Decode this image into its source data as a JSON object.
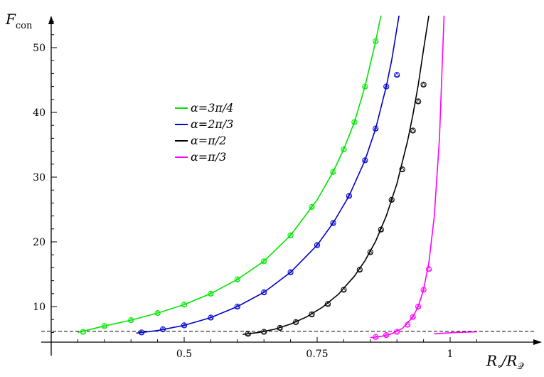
{
  "chart_data": {
    "type": "line",
    "title": "",
    "xlabel": "R∘/R𝒬",
    "xlabel_parts": {
      "main1": "R",
      "sub1": "∘",
      "slash": "/",
      "main2": "R",
      "sub2": "𝒬"
    },
    "ylabel": "F",
    "ylabel_parts": {
      "main": "F",
      "sub": "con"
    },
    "xlim": [
      0.23,
      1.06
    ],
    "ylim": [
      4.6,
      55
    ],
    "xticks": [
      {
        "value": 0.5,
        "label": "0.5"
      },
      {
        "value": 0.75,
        "label": "0.75"
      },
      {
        "value": 1,
        "label": "1"
      }
    ],
    "yticks": [
      {
        "value": 10,
        "label": "10"
      },
      {
        "value": 20,
        "label": "20"
      },
      {
        "value": 30,
        "label": "30"
      },
      {
        "value": 40,
        "label": "40"
      },
      {
        "value": 50,
        "label": "50"
      }
    ],
    "grid": false,
    "legend_position": "upper-left",
    "reference_line": {
      "y": 6.2,
      "style": "dashed"
    },
    "series": [
      {
        "name": "α=3π/4",
        "color": "#00e600",
        "curve": {
          "x": [
            0.3,
            0.35,
            0.4,
            0.45,
            0.5,
            0.55,
            0.6,
            0.65,
            0.7,
            0.75,
            0.78,
            0.8,
            0.82,
            0.84,
            0.86,
            0.87,
            0.88
          ],
          "y": [
            6.0,
            7.0,
            7.9,
            9.0,
            10.3,
            12.0,
            14.2,
            17.0,
            21.0,
            26.5,
            30.8,
            34.3,
            38.5,
            44.0,
            51.0,
            55.0,
            58.0
          ]
        },
        "markers_x": [
          0.31,
          0.35,
          0.4,
          0.45,
          0.5,
          0.55,
          0.6,
          0.65,
          0.7,
          0.74,
          0.78,
          0.8,
          0.82,
          0.84,
          0.86
        ],
        "markers_y": [
          6.1,
          7.0,
          7.9,
          9.0,
          10.3,
          12.0,
          14.2,
          17.0,
          21.0,
          25.4,
          30.8,
          34.3,
          38.5,
          44.0,
          51.0
        ]
      },
      {
        "name": "α=2π/3",
        "color": "#0000cc",
        "curve": {
          "x": [
            0.41,
            0.45,
            0.5,
            0.55,
            0.6,
            0.65,
            0.7,
            0.75,
            0.78,
            0.81,
            0.84,
            0.86,
            0.88,
            0.89,
            0.9,
            0.91
          ],
          "y": [
            5.9,
            6.3,
            7.1,
            8.3,
            10.0,
            12.2,
            15.3,
            19.5,
            22.9,
            27.1,
            32.6,
            37.5,
            44.0,
            48.0,
            53.0,
            58.0
          ]
        },
        "markers_x": [
          0.42,
          0.46,
          0.5,
          0.55,
          0.6,
          0.65,
          0.7,
          0.75,
          0.78,
          0.81,
          0.84,
          0.86,
          0.88,
          0.9
        ],
        "markers_y": [
          6.0,
          6.5,
          7.1,
          8.3,
          10.0,
          12.2,
          15.3,
          19.5,
          22.9,
          27.1,
          32.6,
          37.5,
          44.0,
          45.8
        ]
      },
      {
        "name": "α=π/2",
        "color": "#000000",
        "curve": {
          "x": [
            0.61,
            0.64,
            0.67,
            0.7,
            0.73,
            0.76,
            0.79,
            0.82,
            0.84,
            0.86,
            0.88,
            0.9,
            0.92,
            0.93,
            0.94,
            0.95,
            0.96,
            0.97
          ],
          "y": [
            5.7,
            6.0,
            6.5,
            7.3,
            8.4,
            9.9,
            11.9,
            14.7,
            17.1,
            20.1,
            24.0,
            29.0,
            35.6,
            39.6,
            44.2,
            49.7,
            55.0,
            60.0
          ]
        },
        "markers_x": [
          0.62,
          0.65,
          0.68,
          0.71,
          0.74,
          0.77,
          0.8,
          0.83,
          0.85,
          0.87,
          0.89,
          0.91,
          0.93,
          0.94,
          0.95
        ],
        "markers_y": [
          5.8,
          6.1,
          6.7,
          7.6,
          8.8,
          10.4,
          12.6,
          15.7,
          18.4,
          21.9,
          26.5,
          31.2,
          37.2,
          41.7,
          44.3
        ]
      },
      {
        "name": "α=π/3",
        "color": "#ff00ff",
        "curve": {
          "x": [
            0.85,
            0.87,
            0.89,
            0.91,
            0.93,
            0.94,
            0.95,
            0.96,
            0.97,
            0.98,
            0.99,
            1.0
          ],
          "y": [
            5.2,
            5.4,
            5.8,
            6.6,
            8.4,
            10.0,
            12.6,
            16.8,
            23.8,
            36.0,
            58.0,
            60.0
          ]
        },
        "markers_x": [
          0.86,
          0.88,
          0.9,
          0.92,
          0.93,
          0.94,
          0.95,
          0.96
        ],
        "markers_y": [
          5.3,
          5.6,
          6.1,
          7.2,
          8.4,
          10.0,
          12.6,
          15.8
        ],
        "asymptote_branch": {
          "x": [
            0.97,
            0.99,
            1.01,
            1.03,
            1.05
          ],
          "y": [
            5.8,
            5.9,
            6.0,
            6.05,
            6.1
          ]
        }
      }
    ]
  }
}
